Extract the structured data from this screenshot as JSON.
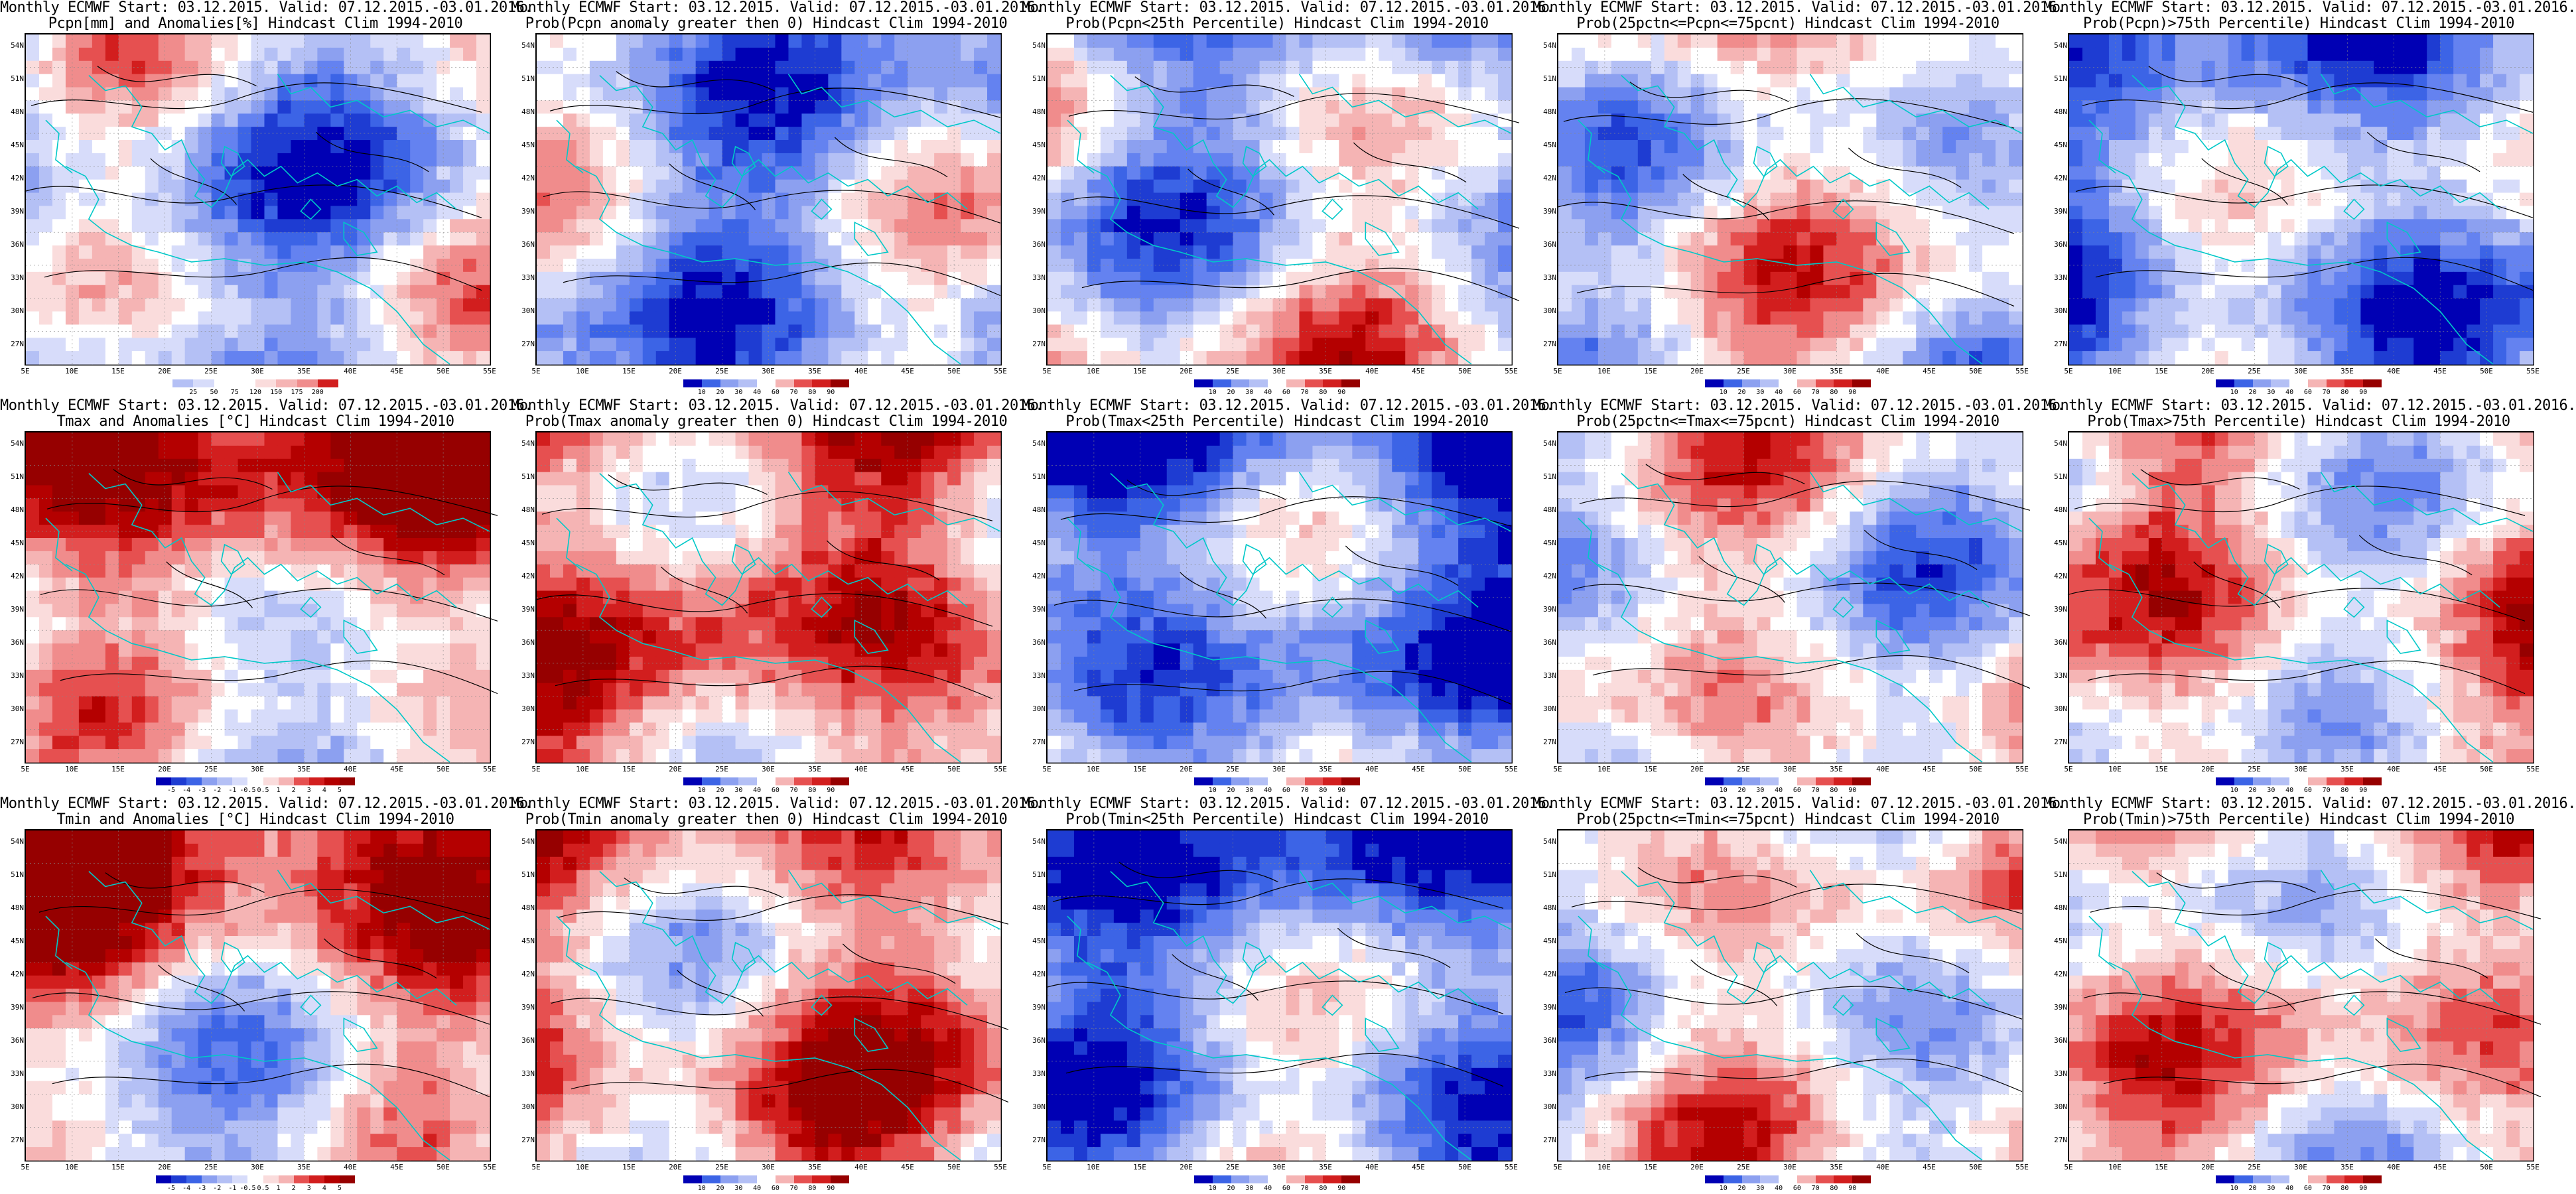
{
  "panels": [
    {
      "title1": "Monthly ECMWF Start: 03.12.2015. Valid: 07.12.2015.-03.01.2016.",
      "title2": "Pcpn[mm] and Anomalies[%] Hindcast Clim 1994-2010",
      "scheme": "pcpn_anom",
      "bias": -0.35,
      "ticks": [
        "25",
        "50",
        "75",
        "120",
        "150",
        "175",
        "200"
      ]
    },
    {
      "title1": "Monthly ECMWF Start: 03.12.2015. Valid: 07.12.2015.-03.01.2016.",
      "title2": "Prob(Pcpn anomaly greater then 0) Hindcast Clim 1994-2010",
      "scheme": "prob",
      "bias": -0.45,
      "ticks": [
        "10",
        "20",
        "30",
        "40",
        "60",
        "70",
        "80",
        "90"
      ]
    },
    {
      "title1": "Monthly ECMWF Start: 03.12.2015. Valid: 07.12.2015.-03.01.2016.",
      "title2": "Prob(Pcpn<25th Percentile) Hindcast Clim 1994-2010",
      "scheme": "prob",
      "bias": -0.2,
      "ticks": [
        "10",
        "20",
        "30",
        "40",
        "60",
        "70",
        "80",
        "90"
      ]
    },
    {
      "title1": "Monthly ECMWF Start: 03.12.2015. Valid: 07.12.2015.-03.01.2016.",
      "title2": "Prob(25pctn<=Pcpn<=75pcnt) Hindcast Clim 1994-2010",
      "scheme": "prob",
      "bias": 0.0,
      "ticks": [
        "10",
        "20",
        "30",
        "40",
        "60",
        "70",
        "80",
        "90"
      ]
    },
    {
      "title1": "Monthly ECMWF Start: 03.12.2015. Valid: 07.12.2015.-03.01.2016.",
      "title2": "Prob(Pcpn)>75th Percentile) Hindcast Clim 1994-2010",
      "scheme": "prob",
      "bias": -0.55,
      "ticks": [
        "10",
        "20",
        "30",
        "40",
        "60",
        "70",
        "80",
        "90"
      ]
    },
    {
      "title1": "Monthly ECMWF Start: 03.12.2015. Valid: 07.12.2015.-03.01.2016.",
      "title2": "Tmax and Anomalies [°C] Hindcast Clim 1994-2010",
      "scheme": "temp",
      "bias": 0.3,
      "ticks": [
        "-5",
        "-4",
        "-3",
        "-2",
        "-1",
        "-0.5",
        "0.5",
        "1",
        "2",
        "3",
        "4",
        "5"
      ]
    },
    {
      "title1": "Monthly ECMWF Start: 03.12.2015. Valid: 07.12.2015.-03.01.2016.",
      "title2": "Prob(Tmax anomaly greater then 0) Hindcast Clim 1994-2010",
      "scheme": "prob",
      "bias": 0.6,
      "ticks": [
        "10",
        "20",
        "30",
        "40",
        "60",
        "70",
        "80",
        "90"
      ]
    },
    {
      "title1": "Monthly ECMWF Start: 03.12.2015. Valid: 07.12.2015.-03.01.2016.",
      "title2": "Prob(Tmax<25th Percentile) Hindcast Clim 1994-2010",
      "scheme": "prob",
      "bias": -0.7,
      "ticks": [
        "10",
        "20",
        "30",
        "40",
        "60",
        "70",
        "80",
        "90"
      ]
    },
    {
      "title1": "Monthly ECMWF Start: 03.12.2015. Valid: 07.12.2015.-03.01.2016.",
      "title2": "Prob(25pctn<=Tmax<=75pcnt) Hindcast Clim 1994-2010",
      "scheme": "prob",
      "bias": 0.0,
      "ticks": [
        "10",
        "20",
        "30",
        "40",
        "60",
        "70",
        "80",
        "90"
      ]
    },
    {
      "title1": "Monthly ECMWF Start: 03.12.2015. Valid: 07.12.2015.-03.01.2016.",
      "title2": "Prob(Tmax>75th Percentile) Hindcast Clim 1994-2010",
      "scheme": "prob",
      "bias": 0.25,
      "ticks": [
        "10",
        "20",
        "30",
        "40",
        "60",
        "70",
        "80",
        "90"
      ]
    },
    {
      "title1": "Monthly ECMWF Start: 03.12.2015. Valid: 07.12.2015.-03.01.2016.",
      "title2": "Tmin and Anomalies [°C] Hindcast Clim 1994-2010",
      "scheme": "temp",
      "bias": 0.25,
      "ticks": [
        "-5",
        "-4",
        "-3",
        "-2",
        "-1",
        "-0.5",
        "0.5",
        "1",
        "2",
        "3",
        "4",
        "5"
      ]
    },
    {
      "title1": "Monthly ECMWF Start: 03.12.2015. Valid: 07.12.2015.-03.01.2016.",
      "title2": "Prob(Tmin anomaly greater then 0) Hindcast Clim 1994-2010",
      "scheme": "prob",
      "bias": 0.5,
      "ticks": [
        "10",
        "20",
        "30",
        "40",
        "60",
        "70",
        "80",
        "90"
      ]
    },
    {
      "title1": "Monthly ECMWF Start: 03.12.2015. Valid: 07.12.2015.-03.01.2016.",
      "title2": "Prob(Tmin<25th Percentile) Hindcast Clim 1994-2010",
      "scheme": "prob",
      "bias": -0.6,
      "ticks": [
        "10",
        "20",
        "30",
        "40",
        "60",
        "70",
        "80",
        "90"
      ]
    },
    {
      "title1": "Monthly ECMWF Start: 03.12.2015. Valid: 07.12.2015.-03.01.2016.",
      "title2": "Prob(25pctn<=Tmin<=75pcnt) Hindcast Clim 1994-2010",
      "scheme": "prob",
      "bias": 0.0,
      "ticks": [
        "10",
        "20",
        "30",
        "40",
        "60",
        "70",
        "80",
        "90"
      ]
    },
    {
      "title1": "Monthly ECMWF Start: 03.12.2015. Valid: 07.12.2015.-03.01.2016.",
      "title2": "Prob(Tmin)>75th Percentile) Hindcast Clim 1994-2010",
      "scheme": "prob",
      "bias": 0.2,
      "ticks": [
        "10",
        "20",
        "30",
        "40",
        "60",
        "70",
        "80",
        "90"
      ]
    }
  ],
  "lat_labels": [
    "54N",
    "51N",
    "48N",
    "45N",
    "42N",
    "39N",
    "36N",
    "33N",
    "30N",
    "27N"
  ],
  "lon_labels": [
    "5E",
    "10E",
    "15E",
    "20E",
    "25E",
    "30E",
    "35E",
    "40E",
    "45E",
    "50E",
    "55E"
  ],
  "colors": {
    "blue_scale": [
      "#0000b4",
      "#1e3cd2",
      "#3c64e6",
      "#6482f0",
      "#8ca0f0",
      "#b4c0f5",
      "#d7dcfa"
    ],
    "red_scale": [
      "#fadcdc",
      "#f5b4b4",
      "#f08c8c",
      "#e65050",
      "#d21e1e",
      "#b40000",
      "#960000"
    ],
    "coast": "#00c8c8",
    "contour": "#000000"
  }
}
